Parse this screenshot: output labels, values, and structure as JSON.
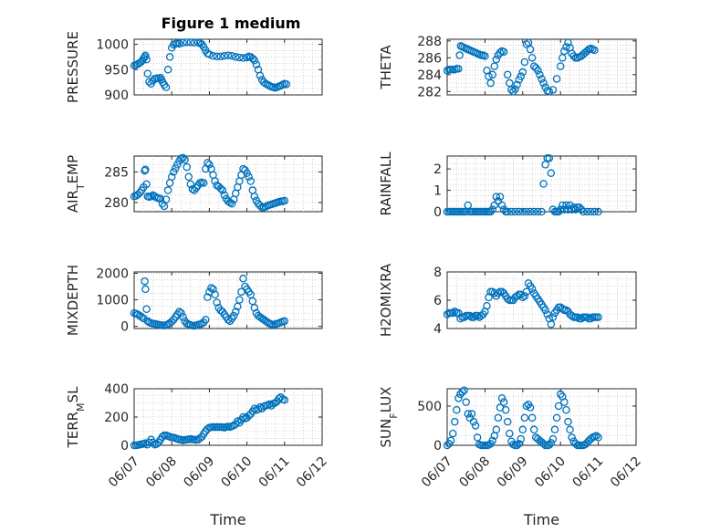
{
  "figure": {
    "title": "Figure 1 medium",
    "xlabel": "Time",
    "x_ticks": [
      "06/07",
      "06/08",
      "06/09",
      "06/10",
      "06/11",
      "06/12"
    ]
  },
  "chart_data": [
    {
      "type": "scatter",
      "ylabel": "PRESSURE",
      "xlabel": "",
      "ylim": [
        900,
        1010
      ],
      "y_ticks": [
        900,
        950,
        1000
      ],
      "y_tick_labels": [
        "900",
        "950",
        "1000"
      ],
      "grid": true,
      "x": [
        0,
        0.05,
        0.1,
        0.14,
        0.18,
        0.22,
        0.25,
        0.28,
        0.3,
        0.33,
        0.36,
        0.4,
        0.45,
        0.5,
        0.55,
        0.6,
        0.65,
        0.7,
        0.73,
        0.76,
        0.8,
        0.85,
        0.9,
        0.95,
        1.0,
        1.05,
        1.1,
        1.15,
        1.2,
        1.3,
        1.4,
        1.5,
        1.6,
        1.7,
        1.75,
        1.8,
        1.85,
        1.9,
        1.95,
        2.0,
        2.1,
        2.2,
        2.3,
        2.4,
        2.5,
        2.6,
        2.7,
        2.8,
        2.9,
        3.0,
        3.05,
        3.1,
        3.15,
        3.2,
        3.25,
        3.3,
        3.35,
        3.4,
        3.45,
        3.5,
        3.55,
        3.6,
        3.65,
        3.7,
        3.75,
        3.8,
        3.85,
        3.9,
        3.95,
        4.0,
        4.05
      ],
      "y": [
        958,
        959,
        961,
        963,
        965,
        968,
        972,
        975,
        978,
        970,
        942,
        926,
        922,
        928,
        932,
        933,
        932,
        934,
        930,
        925,
        920,
        915,
        950,
        975,
        993,
        999,
        1001,
        1002,
        1001,
        1003,
        1004,
        1004,
        1003,
        1004,
        1002,
        1000,
        995,
        988,
        982,
        980,
        977,
        976,
        976,
        977,
        978,
        977,
        975,
        974,
        973,
        974,
        976,
        975,
        972,
        968,
        960,
        950,
        938,
        930,
        925,
        922,
        920,
        918,
        916,
        915,
        914,
        915,
        917,
        918,
        920,
        922,
        921
      ]
    },
    {
      "type": "scatter",
      "ylabel": "THETA",
      "xlabel": "",
      "ylim": [
        281.6,
        288.2
      ],
      "y_ticks": [
        282,
        284,
        286,
        288
      ],
      "y_tick_labels": [
        "282",
        "284",
        "286",
        "288"
      ],
      "grid": true,
      "x": [
        0,
        0.05,
        0.1,
        0.15,
        0.2,
        0.25,
        0.3,
        0.33,
        0.36,
        0.4,
        0.45,
        0.5,
        0.55,
        0.6,
        0.65,
        0.7,
        0.75,
        0.8,
        0.85,
        0.9,
        0.95,
        1.0,
        1.05,
        1.1,
        1.15,
        1.2,
        1.25,
        1.3,
        1.35,
        1.4,
        1.45,
        1.5,
        1.6,
        1.65,
        1.7,
        1.75,
        1.8,
        1.85,
        1.9,
        1.95,
        2.0,
        2.05,
        2.1,
        2.15,
        2.2,
        2.25,
        2.3,
        2.35,
        2.4,
        2.45,
        2.5,
        2.55,
        2.6,
        2.65,
        2.7,
        2.8,
        2.9,
        3.0,
        3.05,
        3.1,
        3.15,
        3.2,
        3.25,
        3.3,
        3.35,
        3.4,
        3.45,
        3.5,
        3.55,
        3.6,
        3.65,
        3.7,
        3.75,
        3.8,
        3.85,
        3.9
      ],
      "y": [
        284.5,
        284.6,
        284.6,
        284.6,
        284.6,
        284.7,
        284.7,
        286.3,
        287.4,
        287.3,
        287.2,
        287.1,
        287.0,
        286.9,
        286.8,
        286.7,
        286.6,
        286.5,
        286.4,
        286.3,
        286.3,
        286.2,
        284.5,
        283.8,
        283.0,
        284.0,
        285.0,
        285.8,
        286.3,
        286.6,
        286.8,
        286.7,
        284.0,
        283.0,
        282.2,
        282.0,
        282.3,
        282.8,
        283.4,
        283.8,
        284.3,
        285.5,
        287.6,
        287.8,
        287.0,
        286.0,
        285.0,
        284.8,
        284.5,
        284.0,
        283.5,
        283.0,
        282.5,
        282.1,
        282.0,
        282.2,
        283.5,
        285.0,
        286.0,
        286.8,
        287.3,
        287.8,
        287.2,
        286.5,
        286.2,
        286.0,
        286.0,
        286.1,
        286.2,
        286.4,
        286.6,
        286.8,
        287.0,
        287.1,
        287.0,
        286.9
      ]
    },
    {
      "type": "scatter",
      "ylabel": "AIR_TEMP",
      "xlabel": "",
      "ylim": [
        278.5,
        287.6
      ],
      "y_ticks": [
        280,
        285
      ],
      "y_tick_labels": [
        "280",
        "285"
      ],
      "grid": true,
      "x": [
        0,
        0.05,
        0.1,
        0.15,
        0.2,
        0.25,
        0.28,
        0.3,
        0.33,
        0.36,
        0.4,
        0.45,
        0.5,
        0.55,
        0.6,
        0.65,
        0.7,
        0.75,
        0.8,
        0.85,
        0.9,
        0.95,
        1.0,
        1.05,
        1.1,
        1.15,
        1.2,
        1.25,
        1.3,
        1.35,
        1.4,
        1.45,
        1.5,
        1.55,
        1.6,
        1.65,
        1.7,
        1.75,
        1.8,
        1.85,
        1.9,
        1.95,
        2.0,
        2.05,
        2.1,
        2.15,
        2.2,
        2.25,
        2.3,
        2.35,
        2.4,
        2.45,
        2.5,
        2.55,
        2.6,
        2.65,
        2.7,
        2.75,
        2.8,
        2.85,
        2.9,
        2.95,
        3.0,
        3.05,
        3.1,
        3.15,
        3.2,
        3.25,
        3.3,
        3.35,
        3.4,
        3.45,
        3.5,
        3.55,
        3.6,
        3.65,
        3.7,
        3.75,
        3.8,
        3.85,
        3.9,
        3.95,
        4.0
      ],
      "y": [
        281,
        281.1,
        281.3,
        281.6,
        282,
        282.5,
        285.2,
        285.4,
        283,
        281,
        280.9,
        281,
        281.2,
        281,
        280.8,
        280.7,
        280.6,
        279.8,
        279.4,
        280.5,
        282,
        283.2,
        284.2,
        285,
        285.6,
        286.2,
        286.8,
        287.2,
        287.3,
        287,
        285.8,
        284.2,
        283,
        282.2,
        282,
        282.4,
        282.8,
        283.2,
        283.3,
        283.2,
        285.5,
        286.5,
        286.2,
        285.5,
        284.5,
        283.5,
        282.8,
        282.6,
        282.3,
        282,
        281.2,
        280.6,
        280.2,
        280,
        279.8,
        280.5,
        281.5,
        282.5,
        283.5,
        284.5,
        285.5,
        285.3,
        284.8,
        284.2,
        283.5,
        282,
        281,
        280.3,
        279.8,
        279.5,
        279.2,
        279.2,
        279.3,
        279.5,
        279.6,
        279.7,
        279.8,
        279.9,
        280,
        280.1,
        280.2,
        280.2,
        280.3
      ]
    },
    {
      "type": "scatter",
      "ylabel": "RAINFALL",
      "xlabel": "",
      "ylim": [
        0,
        2.6
      ],
      "y_ticks": [
        0,
        1,
        2
      ],
      "y_tick_labels": [
        "0",
        "1",
        "2"
      ],
      "grid": true,
      "x": [
        0,
        0.05,
        0.1,
        0.15,
        0.2,
        0.25,
        0.3,
        0.35,
        0.4,
        0.45,
        0.5,
        0.55,
        0.6,
        0.65,
        0.7,
        0.75,
        0.8,
        0.85,
        0.9,
        0.95,
        1.0,
        1.05,
        1.1,
        1.15,
        1.2,
        1.25,
        1.3,
        1.35,
        1.4,
        1.45,
        1.5,
        1.55,
        1.6,
        1.7,
        1.8,
        1.9,
        2.0,
        2.1,
        2.2,
        2.3,
        2.4,
        2.5,
        2.55,
        2.6,
        2.65,
        2.7,
        2.75,
        2.8,
        2.85,
        2.9,
        2.95,
        3.0,
        3.05,
        3.1,
        3.15,
        3.2,
        3.25,
        3.3,
        3.35,
        3.4,
        3.45,
        3.5,
        3.55,
        3.6,
        3.7,
        3.8,
        3.9,
        4.0
      ],
      "y": [
        0,
        0,
        0,
        0,
        0,
        0,
        0,
        0,
        0,
        0,
        0,
        0.3,
        0,
        0,
        0,
        0,
        0,
        0,
        0,
        0,
        0,
        0,
        0,
        0,
        0.1,
        0.3,
        0.7,
        0.5,
        0.7,
        0.3,
        0.1,
        0,
        0,
        0,
        0,
        0,
        0,
        0,
        0,
        0,
        0,
        0,
        1.3,
        2.2,
        2.5,
        2.5,
        1.8,
        0.1,
        0,
        0,
        0,
        0.1,
        0.3,
        0.1,
        0.3,
        0.1,
        0.3,
        0.1,
        0.2,
        0.1,
        0.2,
        0.2,
        0.1,
        0,
        0,
        0,
        0,
        0
      ]
    },
    {
      "type": "scatter",
      "ylabel": "MIXDEPTH",
      "xlabel": "",
      "ylim": [
        -80,
        2050
      ],
      "y_ticks": [
        0,
        1000,
        2000
      ],
      "y_tick_labels": [
        "0",
        "1000",
        "2000"
      ],
      "grid": true,
      "x": [
        0,
        0.05,
        0.1,
        0.15,
        0.2,
        0.25,
        0.28,
        0.3,
        0.33,
        0.36,
        0.4,
        0.45,
        0.5,
        0.55,
        0.6,
        0.65,
        0.7,
        0.75,
        0.8,
        0.85,
        0.9,
        0.95,
        1.0,
        1.05,
        1.1,
        1.15,
        1.2,
        1.25,
        1.3,
        1.35,
        1.4,
        1.45,
        1.5,
        1.55,
        1.6,
        1.65,
        1.7,
        1.75,
        1.8,
        1.85,
        1.9,
        1.95,
        2.0,
        2.05,
        2.1,
        2.15,
        2.2,
        2.25,
        2.3,
        2.35,
        2.4,
        2.45,
        2.5,
        2.55,
        2.6,
        2.65,
        2.7,
        2.75,
        2.8,
        2.85,
        2.9,
        2.95,
        3.0,
        3.05,
        3.1,
        3.15,
        3.2,
        3.25,
        3.3,
        3.35,
        3.4,
        3.45,
        3.5,
        3.55,
        3.6,
        3.65,
        3.7,
        3.75,
        3.8,
        3.85,
        3.9,
        3.95,
        4.0
      ],
      "y": [
        500,
        480,
        450,
        400,
        350,
        300,
        1700,
        1400,
        650,
        200,
        150,
        120,
        100,
        90,
        80,
        60,
        50,
        40,
        30,
        50,
        80,
        120,
        180,
        250,
        350,
        450,
        550,
        500,
        350,
        200,
        100,
        80,
        50,
        30,
        20,
        40,
        60,
        80,
        100,
        150,
        250,
        1100,
        1300,
        1450,
        1400,
        1200,
        900,
        700,
        600,
        550,
        450,
        350,
        250,
        200,
        300,
        400,
        550,
        750,
        1000,
        1300,
        1800,
        1500,
        1400,
        1300,
        1200,
        950,
        700,
        500,
        400,
        350,
        300,
        250,
        200,
        150,
        100,
        80,
        60,
        80,
        100,
        120,
        150,
        180,
        200
      ]
    },
    {
      "type": "scatter",
      "ylabel": "H2OMIXRA",
      "xlabel": "",
      "ylim": [
        4,
        8
      ],
      "y_ticks": [
        4,
        6,
        8
      ],
      "y_tick_labels": [
        "4",
        "6",
        "8"
      ],
      "grid": true,
      "x": [
        0,
        0.05,
        0.1,
        0.15,
        0.2,
        0.25,
        0.3,
        0.35,
        0.4,
        0.45,
        0.5,
        0.55,
        0.6,
        0.65,
        0.7,
        0.75,
        0.8,
        0.85,
        0.9,
        0.95,
        1.0,
        1.05,
        1.1,
        1.15,
        1.2,
        1.25,
        1.3,
        1.35,
        1.4,
        1.45,
        1.5,
        1.55,
        1.6,
        1.65,
        1.7,
        1.75,
        1.8,
        1.85,
        1.9,
        1.95,
        2.0,
        2.05,
        2.1,
        2.15,
        2.2,
        2.25,
        2.3,
        2.35,
        2.4,
        2.45,
        2.5,
        2.55,
        2.6,
        2.65,
        2.7,
        2.75,
        2.8,
        2.85,
        2.9,
        2.95,
        3.0,
        3.05,
        3.1,
        3.15,
        3.2,
        3.25,
        3.3,
        3.35,
        3.4,
        3.45,
        3.5,
        3.55,
        3.6,
        3.65,
        3.7,
        3.75,
        3.8,
        3.85,
        3.9,
        3.95,
        4.0
      ],
      "y": [
        5.0,
        5.1,
        5.1,
        5.1,
        5.2,
        5.1,
        5.1,
        4.7,
        4.8,
        4.8,
        4.9,
        4.9,
        4.9,
        4.8,
        4.8,
        4.9,
        4.9,
        4.8,
        4.9,
        5.0,
        5.2,
        5.6,
        6.2,
        6.6,
        6.6,
        6.5,
        6.3,
        6.5,
        6.6,
        6.6,
        6.5,
        6.3,
        6.1,
        6.0,
        6.0,
        6.0,
        6.2,
        6.3,
        6.4,
        6.4,
        6.2,
        6.3,
        6.6,
        7.2,
        7.0,
        6.8,
        6.5,
        6.3,
        6.1,
        5.9,
        5.7,
        5.5,
        5.3,
        5.0,
        4.7,
        4.3,
        4.8,
        5.1,
        5.3,
        5.5,
        5.5,
        5.4,
        5.3,
        5.3,
        5.2,
        5.0,
        4.9,
        4.8,
        4.8,
        4.8,
        4.7,
        4.7,
        4.8,
        4.8,
        4.8,
        4.7,
        4.7,
        4.8,
        4.8,
        4.8,
        4.8
      ]
    },
    {
      "type": "scatter",
      "ylabel": "TERR_MSL",
      "xlabel": "",
      "ylim": [
        0,
        400
      ],
      "y_ticks": [
        0,
        200,
        400
      ],
      "y_tick_labels": [
        "0",
        "200",
        "400"
      ],
      "grid": true,
      "x": [
        0,
        0.05,
        0.1,
        0.15,
        0.2,
        0.25,
        0.3,
        0.35,
        0.4,
        0.45,
        0.5,
        0.55,
        0.6,
        0.65,
        0.7,
        0.75,
        0.8,
        0.85,
        0.9,
        0.95,
        1.0,
        1.05,
        1.1,
        1.15,
        1.2,
        1.25,
        1.3,
        1.35,
        1.4,
        1.45,
        1.5,
        1.55,
        1.6,
        1.65,
        1.7,
        1.75,
        1.8,
        1.85,
        1.9,
        1.95,
        2.0,
        2.05,
        2.1,
        2.15,
        2.2,
        2.25,
        2.3,
        2.35,
        2.4,
        2.45,
        2.5,
        2.55,
        2.6,
        2.65,
        2.7,
        2.75,
        2.8,
        2.85,
        2.9,
        2.95,
        3.0,
        3.05,
        3.1,
        3.15,
        3.2,
        3.25,
        3.3,
        3.35,
        3.4,
        3.45,
        3.5,
        3.55,
        3.6,
        3.65,
        3.7,
        3.75,
        3.8,
        3.85,
        3.9,
        3.95,
        4.0
      ],
      "y": [
        0,
        0,
        2,
        5,
        8,
        10,
        15,
        5,
        20,
        40,
        20,
        5,
        10,
        20,
        40,
        60,
        70,
        70,
        65,
        60,
        55,
        55,
        50,
        45,
        40,
        40,
        35,
        38,
        40,
        42,
        45,
        42,
        40,
        38,
        40,
        50,
        60,
        80,
        100,
        115,
        125,
        128,
        130,
        128,
        130,
        128,
        130,
        128,
        125,
        130,
        132,
        130,
        135,
        140,
        150,
        170,
        160,
        180,
        200,
        190,
        195,
        210,
        220,
        240,
        260,
        250,
        255,
        270,
        260,
        275,
        280,
        285,
        290,
        280,
        295,
        300,
        310,
        330,
        340,
        325,
        320
      ]
    },
    {
      "type": "scatter",
      "ylabel": "SUN_FLUX",
      "xlabel": "",
      "ylim": [
        0,
        720
      ],
      "y_ticks": [
        0,
        500
      ],
      "y_tick_labels": [
        "0",
        "500"
      ],
      "grid": true,
      "x": [
        0,
        0.05,
        0.1,
        0.15,
        0.2,
        0.25,
        0.3,
        0.35,
        0.4,
        0.45,
        0.5,
        0.55,
        0.6,
        0.65,
        0.7,
        0.75,
        0.8,
        0.85,
        0.9,
        0.95,
        1.0,
        1.05,
        1.1,
        1.15,
        1.2,
        1.25,
        1.3,
        1.35,
        1.4,
        1.45,
        1.5,
        1.55,
        1.6,
        1.65,
        1.7,
        1.75,
        1.8,
        1.85,
        1.9,
        1.95,
        2.0,
        2.05,
        2.1,
        2.15,
        2.2,
        2.25,
        2.3,
        2.35,
        2.4,
        2.45,
        2.5,
        2.55,
        2.6,
        2.65,
        2.7,
        2.75,
        2.8,
        2.85,
        2.9,
        2.95,
        3.0,
        3.05,
        3.1,
        3.15,
        3.2,
        3.25,
        3.3,
        3.35,
        3.4,
        3.45,
        3.5,
        3.55,
        3.6,
        3.65,
        3.7,
        3.75,
        3.8,
        3.85,
        3.9,
        3.95,
        4.0
      ],
      "y": [
        0,
        20,
        60,
        150,
        300,
        450,
        600,
        650,
        680,
        700,
        550,
        400,
        350,
        400,
        300,
        250,
        100,
        10,
        0,
        0,
        0,
        0,
        5,
        20,
        60,
        120,
        200,
        350,
        480,
        600,
        550,
        450,
        300,
        150,
        50,
        10,
        0,
        0,
        20,
        80,
        200,
        350,
        500,
        520,
        480,
        350,
        200,
        100,
        80,
        60,
        40,
        20,
        0,
        0,
        5,
        30,
        80,
        200,
        350,
        500,
        650,
        620,
        550,
        450,
        300,
        200,
        100,
        50,
        20,
        0,
        0,
        0,
        0,
        10,
        30,
        60,
        80,
        100,
        110,
        120,
        100
      ]
    }
  ]
}
